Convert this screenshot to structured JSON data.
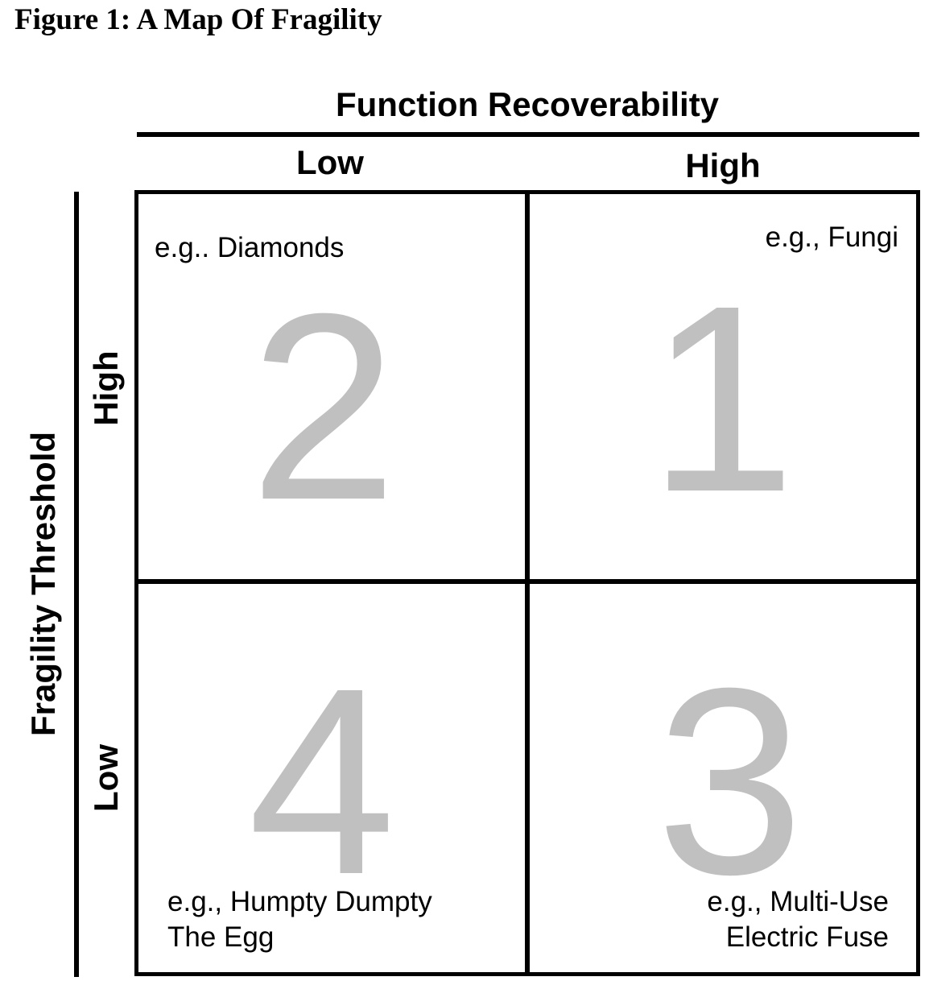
{
  "figure": {
    "title": "Figure 1: A Map Of Fragility"
  },
  "x_axis": {
    "title": "Function Recoverability",
    "low": "Low",
    "high": "High"
  },
  "y_axis": {
    "title": "Fragility Threshold",
    "high": "High",
    "low": "Low"
  },
  "quadrants": {
    "top_left": {
      "number": "2",
      "example": "e.g.. Diamonds"
    },
    "top_right": {
      "number": "1",
      "example": "e.g., Fungi"
    },
    "bottom_left": {
      "number": "4",
      "example_line1": "e.g., Humpty Dumpty",
      "example_line2": "The Egg"
    },
    "bottom_right": {
      "number": "3",
      "example_line1": "e.g., Multi-Use",
      "example_line2": "Electric Fuse"
    }
  },
  "colors": {
    "quadrant_number": "#c0c0c0",
    "lines": "#000000"
  }
}
